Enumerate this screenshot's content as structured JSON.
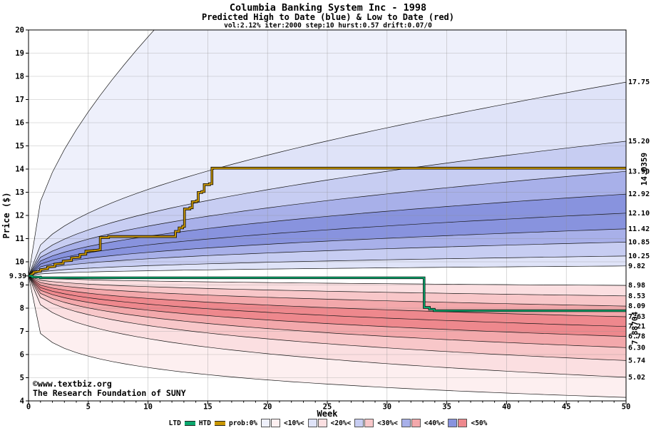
{
  "colors": {
    "navy": "#000080",
    "gold": "#c99700",
    "green": "#0aa86e",
    "watermark": "#0000dd",
    "grid": "#8c8c8c",
    "blue": [
      "#eef0fb",
      "#dfe3f8",
      "#c7cdf2",
      "#a8b0e9",
      "#8893de"
    ],
    "red": [
      "#fdeff0",
      "#fbdfe1",
      "#f8c7c9",
      "#f3a8ab",
      "#ee888d"
    ]
  },
  "watermark": {
    "line1": "©www.textbiz.org",
    "line2": "The Research Foundation of SUNY"
  },
  "legend": {
    "ltd": "LTD",
    "htd": "HTD",
    "prob": "prob:0%",
    "bins": [
      "<10%<",
      "<20%<",
      "<30%<",
      "<40%<",
      "<50%"
    ]
  },
  "chart_data": {
    "type": "area",
    "title": "Columbia Banking System Inc - 1998",
    "subtitle": "Predicted High to Date (blue) &  Low to Date (red)",
    "params": "vol:2.12% iter:2000 step:10 hurst:0.57 drift:0.07/0",
    "xlabel": "Week",
    "ylabel": "Price ($)",
    "xlim": [
      0,
      50
    ],
    "ylim": [
      4,
      20
    ],
    "x_ticks": [
      0,
      5,
      10,
      15,
      20,
      25,
      30,
      35,
      40,
      45,
      50
    ],
    "y_ticks": [
      4,
      5,
      6,
      7,
      8,
      9,
      10,
      11,
      12,
      13,
      14,
      15,
      16,
      17,
      18,
      19,
      20
    ],
    "start_label": "9.39",
    "htd_final_label": "14.0359",
    "ltd_final_label": "7.88704",
    "fan": {
      "start": 9.39,
      "upper": [
        {
          "end": 38.5,
          "shape": 0.4,
          "label": ""
        },
        {
          "end": 17.75,
          "shape": 0.4,
          "label": "17.75"
        },
        {
          "end": 15.2,
          "shape": 0.4,
          "label": "15.20"
        },
        {
          "end": 13.9,
          "shape": 0.4,
          "label": "13.90"
        },
        {
          "end": 12.92,
          "shape": 0.4,
          "label": "12.92"
        },
        {
          "end": 12.1,
          "shape": 0.4,
          "label": "12.10"
        },
        {
          "end": 11.42,
          "shape": 0.4,
          "label": "11.42"
        },
        {
          "end": 10.85,
          "shape": 0.4,
          "label": "10.85"
        },
        {
          "end": 10.25,
          "shape": 0.4,
          "label": "10.25"
        },
        {
          "end": 9.82,
          "shape": 0.4,
          "label": "9.82"
        }
      ],
      "lower": [
        {
          "end": 8.98,
          "shape": 0.4,
          "label": "8.98"
        },
        {
          "end": 8.53,
          "shape": 0.4,
          "label": "8.53"
        },
        {
          "end": 8.09,
          "shape": 0.4,
          "label": "8.09"
        },
        {
          "end": 7.63,
          "shape": 0.4,
          "label": "7.63"
        },
        {
          "end": 7.21,
          "shape": 0.4,
          "label": "7.21"
        },
        {
          "end": 6.78,
          "shape": 0.4,
          "label": "6.78"
        },
        {
          "end": 6.3,
          "shape": 0.4,
          "label": "6.30"
        },
        {
          "end": 5.74,
          "shape": 0.4,
          "label": "5.74"
        },
        {
          "end": 5.02,
          "shape": 0.38,
          "label": "5.02"
        },
        {
          "end": 4.15,
          "shape": 0.25,
          "label": ""
        }
      ],
      "shades_upper": [
        1,
        2,
        3,
        4,
        5,
        5,
        4,
        3,
        2
      ],
      "shades_lower": [
        2,
        3,
        4,
        5,
        5,
        4,
        3,
        2,
        1
      ]
    },
    "htd_series": [
      [
        0,
        9.39
      ],
      [
        0.4,
        9.5
      ],
      [
        0.4,
        9.55
      ],
      [
        1,
        9.59
      ],
      [
        1,
        9.66
      ],
      [
        1.6,
        9.7
      ],
      [
        1.6,
        9.77
      ],
      [
        2.2,
        9.8
      ],
      [
        2.2,
        9.9
      ],
      [
        2.9,
        9.93
      ],
      [
        2.9,
        10.03
      ],
      [
        3.6,
        10.06
      ],
      [
        3.6,
        10.17
      ],
      [
        4.3,
        10.2
      ],
      [
        4.3,
        10.31
      ],
      [
        4.8,
        10.33
      ],
      [
        4.8,
        10.46
      ],
      [
        5.5,
        10.49
      ],
      [
        6,
        10.52
      ],
      [
        6,
        11.05
      ],
      [
        6.7,
        11.05
      ],
      [
        6.7,
        11.09
      ],
      [
        12.3,
        11.09
      ],
      [
        12.3,
        11.31
      ],
      [
        12.6,
        11.31
      ],
      [
        12.6,
        11.46
      ],
      [
        12.9,
        11.46
      ],
      [
        12.9,
        11.53
      ],
      [
        13.05,
        11.53
      ],
      [
        13.05,
        12.28
      ],
      [
        13.5,
        12.28
      ],
      [
        13.5,
        12.33
      ],
      [
        13.7,
        12.33
      ],
      [
        13.7,
        12.59
      ],
      [
        14.05,
        12.59
      ],
      [
        14.05,
        12.63
      ],
      [
        14.2,
        12.63
      ],
      [
        14.2,
        12.99
      ],
      [
        14.5,
        12.99
      ],
      [
        14.5,
        13.03
      ],
      [
        14.7,
        13.03
      ],
      [
        14.7,
        13.33
      ],
      [
        15.15,
        13.33
      ],
      [
        15.15,
        13.37
      ],
      [
        15.35,
        13.37
      ],
      [
        15.35,
        14.04
      ],
      [
        50,
        14.04
      ]
    ],
    "ltd_series": [
      [
        0,
        9.39
      ],
      [
        0.3,
        9.39
      ],
      [
        0.3,
        9.34
      ],
      [
        1,
        9.34
      ],
      [
        1,
        9.31
      ],
      [
        33.1,
        9.31
      ],
      [
        33.1,
        8.03
      ],
      [
        33.55,
        8.03
      ],
      [
        33.55,
        7.95
      ],
      [
        33.95,
        7.95
      ],
      [
        33.95,
        7.89
      ],
      [
        50,
        7.89
      ]
    ]
  }
}
